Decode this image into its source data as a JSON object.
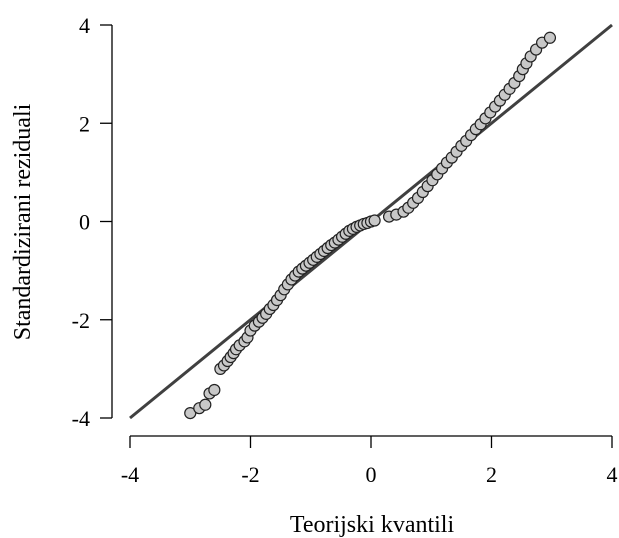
{
  "chart_data": {
    "type": "scatter",
    "title": "",
    "xlabel": "Teorijski kvantili",
    "ylabel": "Standardizirani reziduali",
    "xlim": [
      -4,
      4
    ],
    "ylim": [
      -4,
      4
    ],
    "x_ticks": [
      -4,
      -2,
      0,
      2,
      4
    ],
    "y_ticks": [
      -4,
      -2,
      0,
      2,
      4
    ],
    "x_tick_labels": [
      "-4",
      "-2",
      "0",
      "2",
      "4"
    ],
    "y_tick_labels": [
      "-4",
      "-2",
      "0",
      "2",
      "4"
    ],
    "reference_line": {
      "from": [
        -4,
        -4
      ],
      "to": [
        4,
        4
      ]
    },
    "grid": false,
    "legend": "none",
    "colors": {
      "points_fill": "#c8c8c8",
      "points_stroke": "#222222",
      "line": "#404040"
    },
    "points": [
      {
        "x": -3.0,
        "y": -3.9
      },
      {
        "x": -2.85,
        "y": -3.8
      },
      {
        "x": -2.75,
        "y": -3.73
      },
      {
        "x": -2.68,
        "y": -3.5
      },
      {
        "x": -2.6,
        "y": -3.43
      },
      {
        "x": -2.5,
        "y": -3.0
      },
      {
        "x": -2.44,
        "y": -2.93
      },
      {
        "x": -2.38,
        "y": -2.84
      },
      {
        "x": -2.33,
        "y": -2.76
      },
      {
        "x": -2.28,
        "y": -2.68
      },
      {
        "x": -2.24,
        "y": -2.6
      },
      {
        "x": -2.18,
        "y": -2.52
      },
      {
        "x": -2.1,
        "y": -2.44
      },
      {
        "x": -2.05,
        "y": -2.36
      },
      {
        "x": -2.0,
        "y": -2.22
      },
      {
        "x": -1.93,
        "y": -2.12
      },
      {
        "x": -1.86,
        "y": -2.04
      },
      {
        "x": -1.8,
        "y": -1.96
      },
      {
        "x": -1.74,
        "y": -1.88
      },
      {
        "x": -1.68,
        "y": -1.78
      },
      {
        "x": -1.62,
        "y": -1.7
      },
      {
        "x": -1.56,
        "y": -1.6
      },
      {
        "x": -1.5,
        "y": -1.5
      },
      {
        "x": -1.44,
        "y": -1.38
      },
      {
        "x": -1.38,
        "y": -1.28
      },
      {
        "x": -1.32,
        "y": -1.18
      },
      {
        "x": -1.26,
        "y": -1.1
      },
      {
        "x": -1.2,
        "y": -1.02
      },
      {
        "x": -1.14,
        "y": -0.96
      },
      {
        "x": -1.08,
        "y": -0.9
      },
      {
        "x": -1.02,
        "y": -0.84
      },
      {
        "x": -0.96,
        "y": -0.78
      },
      {
        "x": -0.9,
        "y": -0.72
      },
      {
        "x": -0.84,
        "y": -0.66
      },
      {
        "x": -0.78,
        "y": -0.6
      },
      {
        "x": -0.72,
        "y": -0.54
      },
      {
        "x": -0.66,
        "y": -0.48
      },
      {
        "x": -0.6,
        "y": -0.43
      },
      {
        "x": -0.54,
        "y": -0.37
      },
      {
        "x": -0.48,
        "y": -0.31
      },
      {
        "x": -0.42,
        "y": -0.25
      },
      {
        "x": -0.36,
        "y": -0.19
      },
      {
        "x": -0.3,
        "y": -0.15
      },
      {
        "x": -0.24,
        "y": -0.11
      },
      {
        "x": -0.18,
        "y": -0.08
      },
      {
        "x": -0.12,
        "y": -0.05
      },
      {
        "x": -0.06,
        "y": -0.03
      },
      {
        "x": 0.0,
        "y": 0.0
      },
      {
        "x": 0.06,
        "y": 0.02
      },
      {
        "x": 0.3,
        "y": 0.1
      },
      {
        "x": 0.42,
        "y": 0.14
      },
      {
        "x": 0.54,
        "y": 0.2
      },
      {
        "x": 0.62,
        "y": 0.28
      },
      {
        "x": 0.7,
        "y": 0.38
      },
      {
        "x": 0.78,
        "y": 0.48
      },
      {
        "x": 0.86,
        "y": 0.6
      },
      {
        "x": 0.94,
        "y": 0.72
      },
      {
        "x": 1.02,
        "y": 0.84
      },
      {
        "x": 1.1,
        "y": 0.96
      },
      {
        "x": 1.18,
        "y": 1.08
      },
      {
        "x": 1.26,
        "y": 1.2
      },
      {
        "x": 1.34,
        "y": 1.3
      },
      {
        "x": 1.42,
        "y": 1.42
      },
      {
        "x": 1.5,
        "y": 1.54
      },
      {
        "x": 1.58,
        "y": 1.64
      },
      {
        "x": 1.66,
        "y": 1.76
      },
      {
        "x": 1.74,
        "y": 1.88
      },
      {
        "x": 1.82,
        "y": 1.98
      },
      {
        "x": 1.9,
        "y": 2.1
      },
      {
        "x": 1.98,
        "y": 2.22
      },
      {
        "x": 2.06,
        "y": 2.34
      },
      {
        "x": 2.14,
        "y": 2.46
      },
      {
        "x": 2.22,
        "y": 2.58
      },
      {
        "x": 2.3,
        "y": 2.7
      },
      {
        "x": 2.38,
        "y": 2.82
      },
      {
        "x": 2.46,
        "y": 2.96
      },
      {
        "x": 2.52,
        "y": 3.1
      },
      {
        "x": 2.58,
        "y": 3.22
      },
      {
        "x": 2.65,
        "y": 3.36
      },
      {
        "x": 2.74,
        "y": 3.5
      },
      {
        "x": 2.84,
        "y": 3.64
      },
      {
        "x": 2.97,
        "y": 3.74
      }
    ]
  }
}
